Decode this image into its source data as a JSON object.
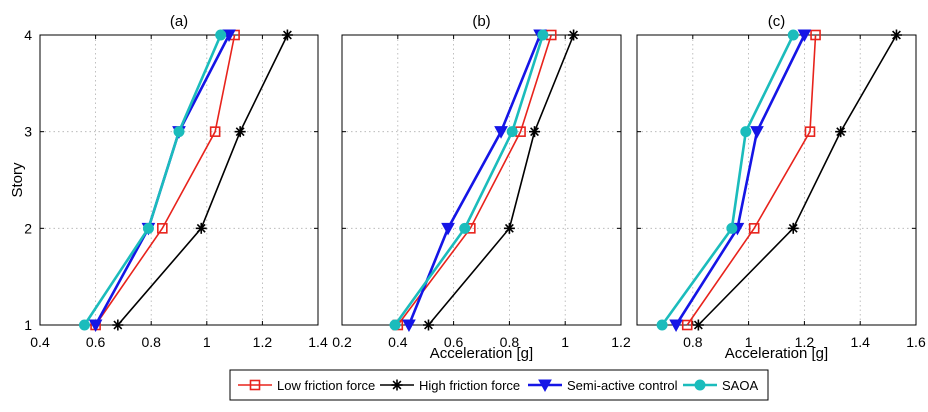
{
  "chart_data": [
    {
      "type": "line",
      "title": "(a)",
      "xlabel": "",
      "ylabel": "Story",
      "xlim": [
        0.4,
        1.4
      ],
      "ylim": [
        1,
        4
      ],
      "xticks": [
        "0.4",
        "0.6",
        "0.8",
        "1",
        "1.2",
        "1.4"
      ],
      "yticks": [
        "1",
        "2",
        "3",
        "4"
      ],
      "grid": true,
      "y": [
        1,
        2,
        3,
        4
      ],
      "series": [
        {
          "name": "Low friction force",
          "x": [
            0.6,
            0.84,
            1.03,
            1.1
          ]
        },
        {
          "name": "High friction force",
          "x": [
            0.68,
            0.98,
            1.12,
            1.29
          ]
        },
        {
          "name": "Semi-active control",
          "x": [
            0.6,
            0.79,
            0.9,
            1.08
          ]
        },
        {
          "name": "SAOA",
          "x": [
            0.56,
            0.79,
            0.9,
            1.05
          ]
        }
      ]
    },
    {
      "type": "line",
      "title": "(b)",
      "xlabel": "Acceleration [g]",
      "ylabel": "",
      "xlim": [
        0.2,
        1.2
      ],
      "ylim": [
        1,
        4
      ],
      "xticks": [
        "0.2",
        "0.4",
        "0.6",
        "0.8",
        "1",
        "1.2"
      ],
      "yticks": [],
      "grid": true,
      "y": [
        1,
        2,
        3,
        4
      ],
      "series": [
        {
          "name": "Low friction force",
          "x": [
            0.4,
            0.66,
            0.84,
            0.95
          ]
        },
        {
          "name": "High friction force",
          "x": [
            0.51,
            0.8,
            0.89,
            1.03
          ]
        },
        {
          "name": "Semi-active control",
          "x": [
            0.44,
            0.58,
            0.77,
            0.91
          ]
        },
        {
          "name": "SAOA",
          "x": [
            0.39,
            0.64,
            0.81,
            0.92
          ]
        }
      ]
    },
    {
      "type": "line",
      "title": "(c)",
      "xlabel": "Acceleration [g]",
      "ylabel": "",
      "xlim": [
        0.6,
        1.6
      ],
      "ylim": [
        1,
        4
      ],
      "xticks": [
        "0.8",
        "1",
        "1.2",
        "1.4",
        "1.6"
      ],
      "yticks": [],
      "grid": true,
      "y": [
        1,
        2,
        3,
        4
      ],
      "series": [
        {
          "name": "Low friction force",
          "x": [
            0.78,
            1.02,
            1.22,
            1.24
          ]
        },
        {
          "name": "High friction force",
          "x": [
            0.82,
            1.16,
            1.33,
            1.53
          ]
        },
        {
          "name": "Semi-active control",
          "x": [
            0.74,
            0.96,
            1.03,
            1.2
          ]
        },
        {
          "name": "SAOA",
          "x": [
            0.69,
            0.94,
            0.99,
            1.16
          ]
        }
      ]
    }
  ],
  "legend": {
    "placement": "bottom",
    "items": [
      {
        "label": "Low friction force",
        "color": "#e8231c",
        "marker": "square-open"
      },
      {
        "label": "High friction force",
        "color": "#000000",
        "marker": "asterisk"
      },
      {
        "label": "Semi-active control",
        "color": "#1515e6",
        "marker": "triangle-down"
      },
      {
        "label": "SAOA",
        "color": "#1bbcbc",
        "marker": "circle"
      }
    ]
  }
}
